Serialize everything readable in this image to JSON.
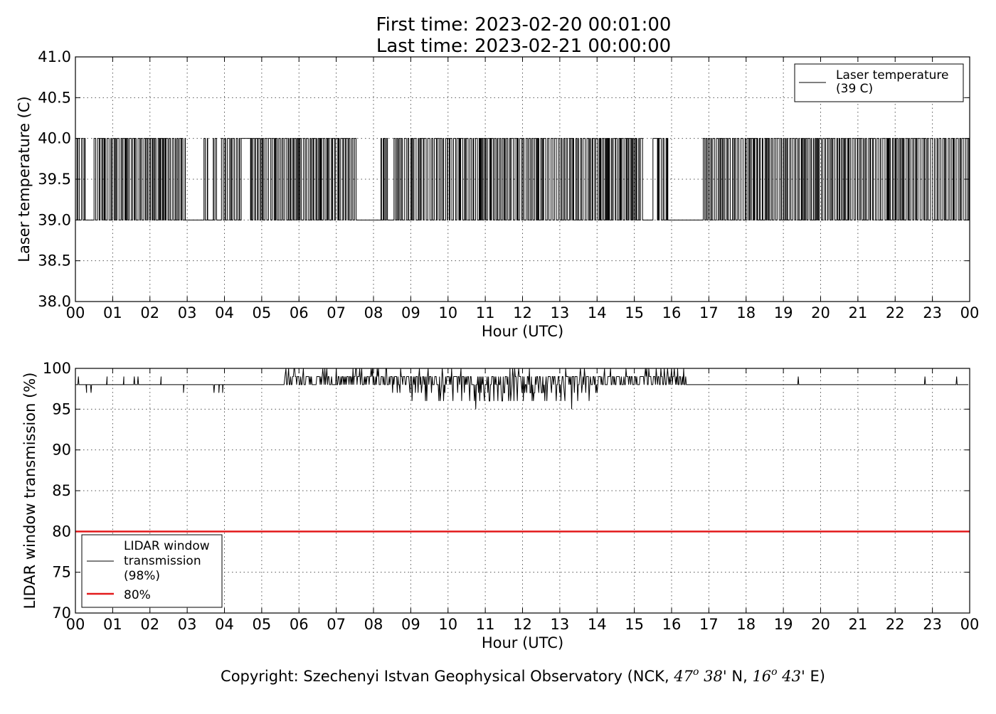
{
  "header": {
    "title_line1": "First time: 2023-02-20 00:01:00",
    "title_line2": "Last time: 2023-02-21 00:00:00"
  },
  "footer": {
    "copyright_prefix": "Copyright: Szechenyi Istvan Geophysical Observatory (NCK, ",
    "lat_deg": "47",
    "deg_sup": "o",
    "lat_min": "38'",
    "lat_dir": "N,",
    "lon_deg": "16",
    "lon_min": "43'",
    "lon_dir": "E)"
  },
  "chart_data": [
    {
      "type": "line",
      "ylabel": "Laser temperature (C)",
      "xlabel": "Hour (UTC)",
      "xlim": [
        0,
        24
      ],
      "ylim": [
        38.0,
        41.0
      ],
      "x_ticks": [
        "00",
        "01",
        "02",
        "03",
        "04",
        "05",
        "06",
        "07",
        "08",
        "09",
        "10",
        "11",
        "12",
        "13",
        "14",
        "15",
        "16",
        "17",
        "18",
        "19",
        "20",
        "21",
        "22",
        "23",
        "00"
      ],
      "y_ticks": [
        "38.0",
        "38.5",
        "39.0",
        "39.5",
        "40.0",
        "40.5",
        "41.0"
      ],
      "grid": true,
      "legend_position": "top-right",
      "series": [
        {
          "name_line1": "Laser temperature",
          "name_line2": "(39 C)",
          "color": "#000000",
          "step": true,
          "values_levels": [
            39.0,
            40.0
          ],
          "segments": [
            {
              "x": [
                0.0,
                0.3
              ],
              "y": 39.0,
              "flicker": true
            },
            {
              "x": [
                0.3,
                0.5
              ],
              "y": 39.0,
              "flicker": false
            },
            {
              "x": [
                0.5,
                2.95
              ],
              "y": 39.0,
              "flicker": true
            },
            {
              "x": [
                2.95,
                3.45
              ],
              "y": 39.0,
              "flicker": false
            },
            {
              "x": [
                3.45,
                3.55
              ],
              "y": 39.0,
              "flicker": true
            },
            {
              "x": [
                3.55,
                3.7
              ],
              "y": 39.0,
              "flicker": false
            },
            {
              "x": [
                3.7,
                3.8
              ],
              "y": 39.0,
              "flicker": true
            },
            {
              "x": [
                3.8,
                3.92
              ],
              "y": 39.0,
              "flicker": false
            },
            {
              "x": [
                3.92,
                4.45
              ],
              "y": 39.0,
              "flicker": true
            },
            {
              "x": [
                4.45,
                4.7
              ],
              "y": 40.0,
              "flicker": false
            },
            {
              "x": [
                4.7,
                7.55
              ],
              "y": 39.0,
              "flicker": true
            },
            {
              "x": [
                7.55,
                8.2
              ],
              "y": 39.0,
              "flicker": false
            },
            {
              "x": [
                8.2,
                8.4
              ],
              "y": 39.0,
              "flicker": true
            },
            {
              "x": [
                8.4,
                8.55
              ],
              "y": 39.0,
              "flicker": false
            },
            {
              "x": [
                8.55,
                15.25
              ],
              "y": 39.0,
              "flicker": true
            },
            {
              "x": [
                15.25,
                15.5
              ],
              "y": 39.0,
              "flicker": false
            },
            {
              "x": [
                15.5,
                15.62
              ],
              "y": 40.0,
              "flicker": false
            },
            {
              "x": [
                15.62,
                15.9
              ],
              "y": 39.0,
              "flicker": true
            },
            {
              "x": [
                15.9,
                16.85
              ],
              "y": 39.0,
              "flicker": false
            },
            {
              "x": [
                16.85,
                24.0
              ],
              "y": 39.0,
              "flicker": true
            }
          ]
        }
      ]
    },
    {
      "type": "line",
      "ylabel": "LIDAR window transmission (%)",
      "xlabel": "Hour (UTC)",
      "xlim": [
        0,
        24
      ],
      "ylim": [
        70,
        100
      ],
      "x_ticks": [
        "00",
        "01",
        "02",
        "03",
        "04",
        "05",
        "06",
        "07",
        "08",
        "09",
        "10",
        "11",
        "12",
        "13",
        "14",
        "15",
        "16",
        "17",
        "18",
        "19",
        "20",
        "21",
        "22",
        "23",
        "00"
      ],
      "y_ticks": [
        "70",
        "75",
        "80",
        "85",
        "90",
        "95",
        "100"
      ],
      "grid": true,
      "legend_position": "lower-left",
      "series": [
        {
          "name_line1": "LIDAR window",
          "name_line2": "transmission",
          "name_line3": "(98%)",
          "color": "#000000",
          "baseline": 98,
          "noisy_range": [
            5.6,
            16.4
          ],
          "spikes": [
            {
              "x": 0.08,
              "y": 99
            },
            {
              "x": 0.3,
              "y": 97
            },
            {
              "x": 0.42,
              "y": 97
            },
            {
              "x": 0.85,
              "y": 99
            },
            {
              "x": 1.3,
              "y": 99
            },
            {
              "x": 1.58,
              "y": 99
            },
            {
              "x": 1.68,
              "y": 99
            },
            {
              "x": 2.3,
              "y": 99
            },
            {
              "x": 2.9,
              "y": 97
            },
            {
              "x": 3.72,
              "y": 97
            },
            {
              "x": 3.85,
              "y": 97
            },
            {
              "x": 3.95,
              "y": 97
            },
            {
              "x": 19.4,
              "y": 99
            },
            {
              "x": 22.8,
              "y": 99
            },
            {
              "x": 23.65,
              "y": 99
            }
          ],
          "minimum": {
            "x": 10.75,
            "y": 95
          }
        },
        {
          "name": "80%",
          "color": "#e31a1c",
          "constant": 80
        }
      ]
    }
  ]
}
